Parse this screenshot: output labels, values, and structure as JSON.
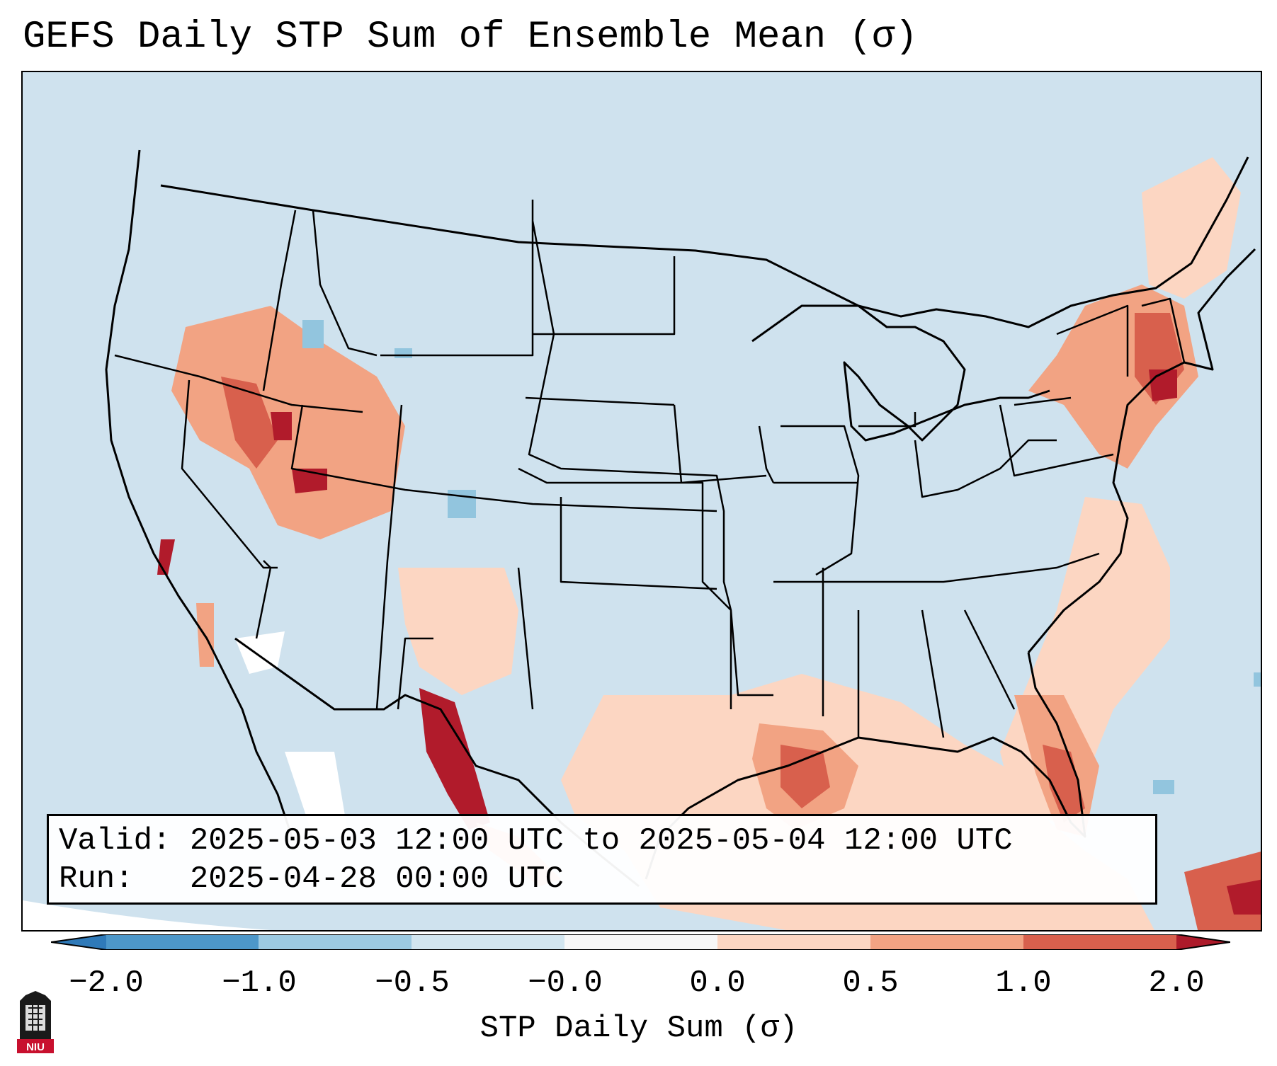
{
  "title": "GEFS Daily STP Sum of Ensemble Mean (σ)",
  "info": {
    "valid_label": "Valid:",
    "valid_value": "2025-05-03 12:00 UTC to 2025-05-04 12:00 UTC",
    "run_label": "Run:",
    "run_value": "2025-04-28 00:00 UTC"
  },
  "colorbar": {
    "label": "STP Daily Sum (σ)",
    "ticks": [
      "−2.0",
      "−1.0",
      "−0.5",
      "−0.0",
      "0.0",
      "0.5",
      "1.0",
      "2.0"
    ],
    "bin_colors": [
      "#2f7ab9",
      "#4d97c9",
      "#9ccae2",
      "#d2e5ef",
      "#f7f7f7",
      "#fcd6c2",
      "#f2a383",
      "#d8604d",
      "#ad1a2a"
    ],
    "extend": "both"
  },
  "map": {
    "background": "#cfe2ee",
    "land_outline": "#000000",
    "colors": {
      "light_pos": "#fcd6c2",
      "mid_pos": "#f2a383",
      "high_pos": "#d8604d",
      "max_pos": "#b11b2b",
      "neg": "#92c5de",
      "neutral": "#ffffff"
    }
  },
  "logo": {
    "text": "NIU",
    "color": "#c8102e"
  }
}
